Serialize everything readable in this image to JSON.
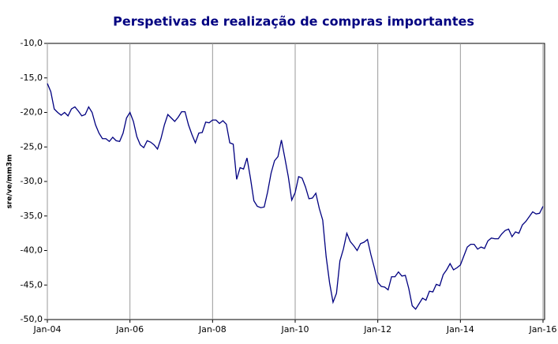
{
  "chart_data": {
    "type": "line",
    "title": "Perspetivas de realização de compras importantes",
    "y_label": "sre/ve/mm3m",
    "categories": [
      "Jan-04",
      null,
      null,
      null,
      null,
      null,
      null,
      null,
      null,
      null,
      null,
      null,
      null,
      null,
      null,
      null,
      null,
      null,
      null,
      null,
      null,
      null,
      null,
      null,
      "Jan-06",
      null,
      null,
      null,
      null,
      null,
      null,
      null,
      null,
      null,
      null,
      null,
      null,
      null,
      null,
      null,
      null,
      null,
      null,
      null,
      null,
      null,
      null,
      null,
      "Jan-08",
      null,
      null,
      null,
      null,
      null,
      null,
      null,
      null,
      null,
      null,
      null,
      null,
      null,
      null,
      null,
      null,
      null,
      null,
      null,
      null,
      null,
      null,
      null,
      "Jan-10",
      null,
      null,
      null,
      null,
      null,
      null,
      null,
      null,
      null,
      null,
      null,
      null,
      null,
      null,
      null,
      null,
      null,
      null,
      null,
      null,
      null,
      null,
      null,
      "Jan-12",
      null,
      null,
      null,
      null,
      null,
      null,
      null,
      null,
      null,
      null,
      null,
      null,
      null,
      null,
      null,
      null,
      null,
      null,
      null,
      null,
      null,
      null,
      null,
      "Jan-14",
      null,
      null,
      null,
      null,
      null,
      null,
      null,
      null,
      null,
      null,
      null,
      null,
      null,
      null,
      null,
      null,
      null,
      null,
      null,
      null,
      null,
      null,
      null,
      "Jan-16"
    ],
    "series": [
      {
        "color": "#000080",
        "values": [
          -15.8,
          -17,
          -19.5,
          -20,
          -20.4,
          -20,
          -20.5,
          -19.5,
          -19.2,
          -19.8,
          -20.5,
          -20.3,
          -19.2,
          -20,
          -21.8,
          -23,
          -23.8,
          -23.8,
          -24.2,
          -23.6,
          -24.1,
          -24.2,
          -23,
          -20.8,
          -20,
          -21.3,
          -23.5,
          -24.7,
          -25.1,
          -24.1,
          -24.3,
          -24.7,
          -25.3,
          -23.8,
          -21.8,
          -20.3,
          -20.8,
          -21.3,
          -20.7,
          -19.9,
          -19.9,
          -21.8,
          -23.2,
          -24.4,
          -23,
          -22.9,
          -21.4,
          -21.5,
          -21.1,
          -21.1,
          -21.6,
          -21.2,
          -21.7,
          -24.4,
          -24.6,
          -29.7,
          -28,
          -28.2,
          -26.6,
          -29.5,
          -32.8,
          -33.6,
          -33.8,
          -33.7,
          -31.5,
          -28.8,
          -27,
          -26.4,
          -24,
          -26.6,
          -29.3,
          -32.7,
          -31.6,
          -29.3,
          -29.5,
          -30.8,
          -32.5,
          -32.4,
          -31.7,
          -33.9,
          -35.6,
          -40.9,
          -44.7,
          -47.5,
          -46.2,
          -41.5,
          -39.8,
          -37.5,
          -38.7,
          -39.3,
          -40,
          -39,
          -38.8,
          -38.4,
          -40.6,
          -42.5,
          -44.6,
          -45.2,
          -45.3,
          -45.7,
          -43.8,
          -43.8,
          -43.1,
          -43.7,
          -43.6,
          -45.5,
          -48,
          -48.5,
          -47.7,
          -46.9,
          -47.2,
          -45.9,
          -46,
          -44.9,
          -45.1,
          -43.5,
          -42.8,
          -41.9,
          -42.8,
          -42.5,
          -42.1,
          -40.8,
          -39.5,
          -39.1,
          -39.1,
          -39.8,
          -39.5,
          -39.7,
          -38.6,
          -38.2,
          -38.3,
          -38.3,
          -37.6,
          -37.1,
          -36.9,
          -38,
          -37.3,
          -37.5,
          -36.3,
          -35.8,
          -35.1,
          -34.4,
          -34.7,
          -34.6,
          -33.6
        ]
      }
    ],
    "ylim": [
      -50,
      -10
    ],
    "yticks": [
      {
        "value": -50,
        "label": "-50,0"
      },
      {
        "value": -45,
        "label": "-45,0"
      },
      {
        "value": -40,
        "label": "-40,0"
      },
      {
        "value": -35,
        "label": "-35,0"
      },
      {
        "value": -30,
        "label": "-30,0"
      },
      {
        "value": -25,
        "label": "-25,0"
      },
      {
        "value": -20,
        "label": "-20,0"
      },
      {
        "value": -15,
        "label": "-15,0"
      },
      {
        "value": -10,
        "label": "-10,0"
      }
    ],
    "grid": true
  }
}
